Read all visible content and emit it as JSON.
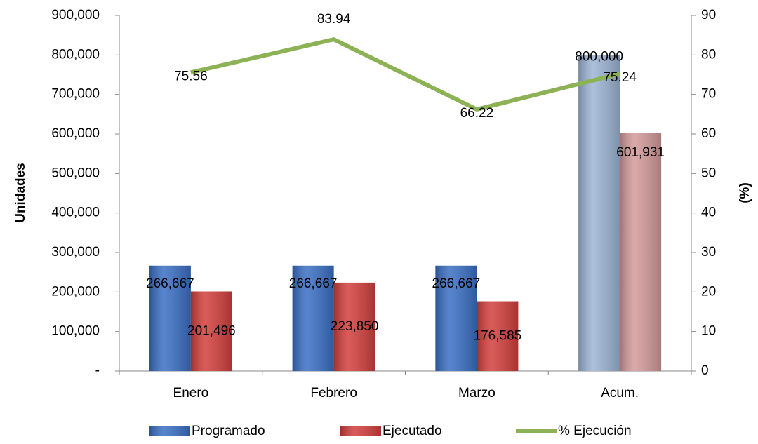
{
  "chart_data": {
    "type": "bar_line",
    "categories": [
      "Enero",
      "Febrero",
      "Marzo",
      "Acum."
    ],
    "series": [
      {
        "name": "Programado",
        "color": "#3a6fc4",
        "point_colors": [
          "#3a6fc4",
          "#3a6fc4",
          "#3a6fc4",
          "#9db4d4"
        ],
        "values": [
          266667,
          266667,
          266667,
          800000
        ],
        "value_labels": [
          "266,667",
          "266,667",
          "266,667",
          "800,000"
        ]
      },
      {
        "name": "Ejecutado",
        "color": "#d23f3c",
        "point_colors": [
          "#d23f3c",
          "#d23f3c",
          "#d23f3c",
          "#d49a9a"
        ],
        "values": [
          201496,
          223850,
          176585,
          601931
        ],
        "value_labels": [
          "201,496",
          "223,850",
          "176,585",
          "601,931"
        ]
      },
      {
        "name": "% Ejecución",
        "color": "#8db255",
        "axis": "y2",
        "values": [
          75.56,
          83.94,
          66.22,
          75.24
        ]
      }
    ],
    "y_label": "Unidades",
    "y2_label": "(%)",
    "ylim": [
      0,
      900000
    ],
    "yticks": [
      {
        "value": 0,
        "label": "-"
      },
      {
        "value": 100000,
        "label": "100,000"
      },
      {
        "value": 200000,
        "label": "200,000"
      },
      {
        "value": 300000,
        "label": "300,000"
      },
      {
        "value": 400000,
        "label": "400,000"
      },
      {
        "value": 500000,
        "label": "500,000"
      },
      {
        "value": 600000,
        "label": "600,000"
      },
      {
        "value": 700000,
        "label": "700,000"
      },
      {
        "value": 800000,
        "label": "800,000"
      },
      {
        "value": 900000,
        "label": "900,000"
      }
    ],
    "y2lim": [
      0,
      90
    ],
    "y2ticks": [
      0,
      10,
      20,
      30,
      40,
      50,
      60,
      70,
      80,
      90
    ],
    "legend": "bottom"
  }
}
